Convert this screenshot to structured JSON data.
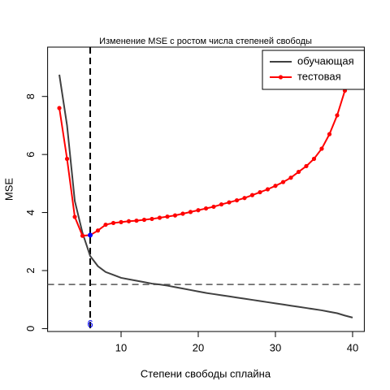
{
  "chart_data": {
    "type": "line",
    "title": "Изменение MSE с ростом числа степеней свободы",
    "x_label": "Степени свободы сплайна",
    "y_label": "MSE",
    "x": [
      2,
      3,
      4,
      5,
      6,
      7,
      8,
      9,
      10,
      11,
      12,
      13,
      14,
      15,
      16,
      17,
      18,
      19,
      20,
      21,
      22,
      23,
      24,
      25,
      26,
      27,
      28,
      29,
      30,
      31,
      32,
      33,
      34,
      35,
      36,
      37,
      38,
      39,
      40
    ],
    "series": [
      {
        "name": "обучающая",
        "color": "#404040",
        "markers": false,
        "values": [
          8.75,
          7.0,
          4.4,
          3.3,
          2.5,
          2.15,
          1.95,
          1.85,
          1.75,
          1.7,
          1.65,
          1.6,
          1.55,
          1.52,
          1.48,
          1.43,
          1.38,
          1.33,
          1.28,
          1.23,
          1.19,
          1.15,
          1.11,
          1.07,
          1.03,
          0.99,
          0.95,
          0.91,
          0.87,
          0.83,
          0.79,
          0.75,
          0.71,
          0.67,
          0.63,
          0.58,
          0.53,
          0.45,
          0.38
        ]
      },
      {
        "name": "тестовая",
        "color": "#ff0000",
        "markers": true,
        "values": [
          7.6,
          5.85,
          3.85,
          3.2,
          3.22,
          3.38,
          3.58,
          3.64,
          3.67,
          3.7,
          3.72,
          3.75,
          3.78,
          3.82,
          3.86,
          3.9,
          3.96,
          4.02,
          4.08,
          4.14,
          4.2,
          4.28,
          4.35,
          4.42,
          4.5,
          4.6,
          4.7,
          4.8,
          4.92,
          5.05,
          5.2,
          5.4,
          5.6,
          5.85,
          6.2,
          6.7,
          7.35,
          8.2,
          9.35
        ]
      }
    ],
    "hline": 1.52,
    "vline": 6,
    "highlight": {
      "x": 6,
      "y": 3.22,
      "label": "6",
      "color": "#0000ff"
    },
    "xlim": [
      0.48,
      41.52
    ],
    "xticks": [
      10,
      20,
      30,
      40
    ],
    "ylim": [
      -0.1,
      9.7
    ],
    "yticks": [
      0,
      2,
      4,
      6,
      8
    ],
    "legend": "top-right"
  }
}
